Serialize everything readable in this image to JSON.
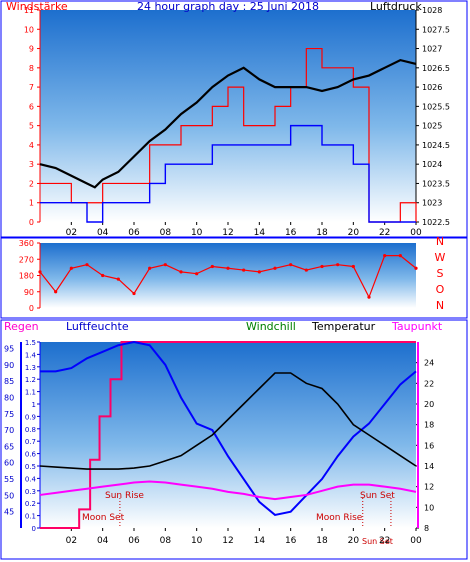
{
  "colors": {
    "frame": "#0000ff",
    "plot_top": "#1d6fce",
    "plot_bottom": "#ffffff",
    "wind": "#ff0000",
    "gust": "#0000ff",
    "pressure": "#000000",
    "direction": "#ff0000",
    "humidity": "#0000ff",
    "temperature": "#000000",
    "windchill": "#008000",
    "dewpoint": "#ff00ff",
    "rain": "#ff0066",
    "sun_moon": "#cc0000"
  },
  "chart_data": [
    {
      "type": "line",
      "title": "24 hour graph day : 25 Juni 2018",
      "left_axis_label": "Windstärke",
      "right_axis_label": "Luftdruck",
      "x_ticks": [
        "02",
        "04",
        "06",
        "08",
        "10",
        "12",
        "14",
        "16",
        "18",
        "20",
        "22",
        "00"
      ],
      "x_range": [
        0,
        24
      ],
      "left_ticks": [
        0,
        1,
        2,
        3,
        4,
        5,
        6,
        7,
        8,
        9,
        10,
        11
      ],
      "left_range": [
        0,
        11
      ],
      "right_ticks": [
        "1022.5",
        "1023",
        "1023.5",
        "1024",
        "1024.5",
        "1025",
        "1025.5",
        "1026",
        "1026.5",
        "1027",
        "1027.5",
        "1028"
      ],
      "right_range": [
        1022.5,
        1028
      ],
      "series": [
        {
          "role": "pressure",
          "x": [
            0,
            1,
            2,
            3,
            3.5,
            4,
            5,
            6,
            7,
            8,
            9,
            10,
            11,
            12,
            13,
            14,
            15,
            16,
            17,
            18,
            19,
            20,
            21,
            22,
            23,
            24
          ],
          "y": [
            1024,
            1023.9,
            1023.7,
            1023.5,
            1023.4,
            1023.6,
            1023.8,
            1024.2,
            1024.6,
            1024.9,
            1025.3,
            1025.6,
            1026,
            1026.3,
            1026.5,
            1026.2,
            1026,
            1026,
            1026,
            1025.9,
            1026,
            1026.2,
            1026.3,
            1026.5,
            1026.7,
            1026.6
          ]
        },
        {
          "role": "wind",
          "x": [
            0,
            1,
            2,
            3,
            4,
            5,
            6,
            7,
            8,
            9,
            10,
            11,
            12,
            13,
            14,
            15,
            16,
            17,
            18,
            19,
            20,
            21,
            22,
            23,
            24
          ],
          "y": [
            1,
            1,
            1,
            0,
            1,
            1,
            1,
            2,
            3,
            3,
            3,
            4,
            4,
            4,
            4,
            4,
            5,
            5,
            4,
            4,
            3,
            0,
            0,
            0,
            0
          ],
          "gust_y": [
            2,
            2,
            1,
            1,
            2,
            2,
            2,
            4,
            4,
            5,
            5,
            6,
            7,
            5,
            5,
            6,
            7,
            9,
            8,
            8,
            7,
            0,
            0,
            1,
            0
          ]
        }
      ]
    },
    {
      "type": "scatter",
      "x_range": [
        0,
        24
      ],
      "left_ticks": [
        0,
        90,
        180,
        270,
        360
      ],
      "left_range": [
        0,
        360
      ],
      "right_ticks": [
        "N",
        "W",
        "S",
        "O",
        "N"
      ],
      "series": [
        {
          "role": "wind_direction",
          "x": [
            0,
            1,
            2,
            3,
            4,
            5,
            6,
            7,
            8,
            9,
            10,
            11,
            12,
            13,
            14,
            15,
            16,
            17,
            18,
            19,
            20,
            21,
            22,
            23,
            24
          ],
          "y": [
            200,
            90,
            220,
            240,
            180,
            160,
            80,
            220,
            240,
            200,
            190,
            230,
            220,
            210,
            200,
            220,
            240,
            210,
            230,
            240,
            230,
            60,
            290,
            290,
            220
          ]
        }
      ]
    },
    {
      "type": "line",
      "legend": [
        "Regen",
        "Luftfeuchte",
        "Windchill",
        "Temperatur",
        "Taupunkt"
      ],
      "x_ticks": [
        "02",
        "04",
        "06",
        "08",
        "10",
        "12",
        "14",
        "16",
        "18",
        "20",
        "22",
        "00"
      ],
      "x_range": [
        0,
        24
      ],
      "rain_ticks": [
        "0",
        "0.1",
        "0.2",
        "0.3",
        "0.4",
        "0.5",
        "0.6",
        "0.7",
        "0.8",
        "0.9",
        "1",
        "1.1",
        "1.2",
        "1.3",
        "1.4",
        "1.5"
      ],
      "rain_range": [
        0,
        1.5
      ],
      "humidity_ticks": [
        45,
        50,
        55,
        60,
        65,
        70,
        75,
        80,
        85,
        90,
        95
      ],
      "humidity_range": [
        40,
        97
      ],
      "temp_ticks": [
        8,
        10,
        12,
        14,
        16,
        18,
        20,
        22,
        24
      ],
      "temp_range": [
        8,
        26
      ],
      "annotations": [
        "Sun Rise",
        "Sun Set",
        "Moon Set",
        "Moon Rise",
        "Sun Set"
      ],
      "series": [
        {
          "role": "humidity",
          "x": [
            0,
            1,
            2,
            3,
            4,
            5,
            6,
            7,
            8,
            9,
            10,
            11,
            12,
            13,
            14,
            15,
            16,
            17,
            18,
            19,
            20,
            21,
            22,
            23,
            24
          ],
          "y": [
            88,
            88,
            89,
            92,
            94,
            96,
            97,
            96,
            90,
            80,
            72,
            70,
            62,
            55,
            48,
            44,
            45,
            50,
            55,
            62,
            68,
            72,
            78,
            84,
            88
          ]
        },
        {
          "role": "temperature",
          "x": [
            0,
            1,
            2,
            3,
            4,
            5,
            6,
            7,
            8,
            9,
            10,
            11,
            12,
            13,
            14,
            15,
            16,
            17,
            18,
            19,
            20,
            21,
            22,
            23,
            24
          ],
          "y": [
            14,
            13.9,
            13.8,
            13.7,
            13.7,
            13.7,
            13.8,
            14,
            14.5,
            15,
            16,
            17,
            18.5,
            20,
            21.5,
            23,
            23,
            22,
            21.5,
            20,
            18,
            17,
            16,
            15,
            14
          ]
        },
        {
          "role": "dewpoint",
          "x": [
            0,
            1,
            2,
            3,
            4,
            5,
            6,
            7,
            8,
            9,
            10,
            11,
            12,
            13,
            14,
            15,
            16,
            17,
            18,
            19,
            20,
            21,
            22,
            23,
            24
          ],
          "y": [
            11.2,
            11.4,
            11.6,
            11.8,
            12,
            12.2,
            12.4,
            12.5,
            12.4,
            12.2,
            12,
            11.8,
            11.5,
            11.3,
            11,
            10.8,
            11,
            11.2,
            11.6,
            12,
            12.2,
            12.2,
            12,
            11.8,
            11.5
          ]
        },
        {
          "role": "rain",
          "x": [
            0,
            2.5,
            2.5,
            3.2,
            3.2,
            3.8,
            3.8,
            4.5,
            4.5,
            5.2,
            5.2,
            24
          ],
          "y": [
            0,
            0,
            0.15,
            0.15,
            0.55,
            0.55,
            0.9,
            0.9,
            1.2,
            1.2,
            1.5,
            1.5
          ]
        }
      ]
    }
  ]
}
